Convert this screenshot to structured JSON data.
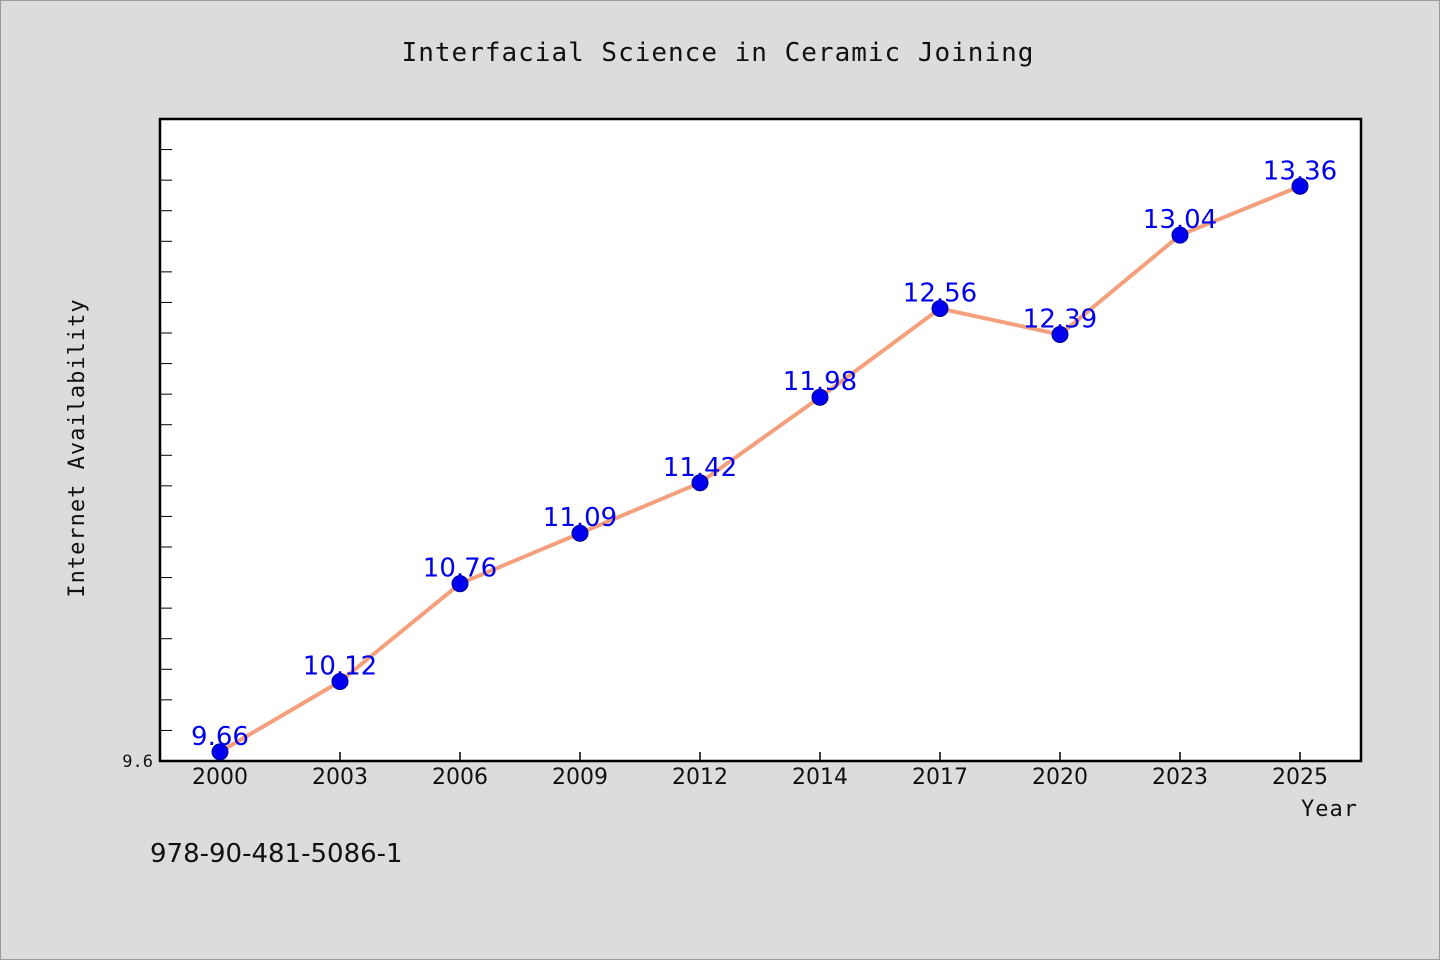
{
  "chart_data": {
    "type": "line",
    "title": "Interfacial Science in Ceramic Joining",
    "xlabel": "Year",
    "ylabel": "Internet Availability",
    "categories": [
      "2000",
      "2003",
      "2006",
      "2009",
      "2012",
      "2014",
      "2017",
      "2020",
      "2023",
      "2025"
    ],
    "values": [
      9.66,
      10.12,
      10.76,
      11.09,
      11.42,
      11.98,
      12.56,
      12.39,
      13.04,
      13.36
    ],
    "data_labels": [
      "9.66",
      "10.12",
      "10.76",
      "11.09",
      "11.42",
      "11.98",
      "12.56",
      "12.39",
      "13.04",
      "13.36"
    ],
    "y_tick_labels": [
      "9.6"
    ],
    "ylim": [
      9.6,
      13.8
    ],
    "grid": false,
    "legend": "none",
    "colors": {
      "line": "#f4a07c",
      "marker": "#0000ee",
      "label": "#0000ee",
      "plot_background": "#ffffff",
      "page_background": "#dcdcdc"
    }
  },
  "footer": {
    "isbn": "978-90-481-5086-1"
  }
}
